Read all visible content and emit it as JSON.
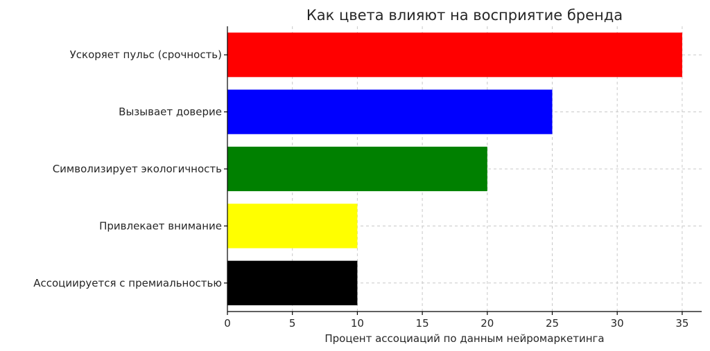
{
  "chart_data": {
    "type": "bar",
    "orientation": "horizontal",
    "title": "Как цвета влияют на восприятие бренда",
    "xlabel": "Процент ассоциаций по данным нейромаркетинга",
    "ylabel": "",
    "xlim": [
      0,
      36.5
    ],
    "xticks": [
      0,
      5,
      10,
      15,
      20,
      25,
      30,
      35
    ],
    "grid": true,
    "categories": [
      "Ускоряет пульс (срочность)",
      "Вызывает доверие",
      "Символизирует экологичность",
      "Привлекает внимание",
      "Ассоциируется с премиальностью"
    ],
    "values": [
      35,
      25,
      20,
      10,
      10
    ],
    "colors": [
      "#ff0000",
      "#0000ff",
      "#008000",
      "#ffff00",
      "#000000"
    ]
  }
}
